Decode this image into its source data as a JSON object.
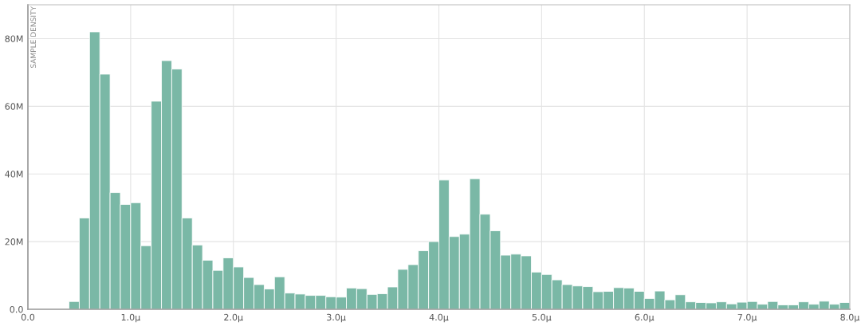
{
  "chart_data": {
    "type": "histogram",
    "ylabel": "SAMPLE DENSITY",
    "color": "#7ab8a6",
    "bins": [
      0.4,
      0.5,
      0.6,
      0.7,
      0.8,
      0.9,
      1.0,
      1.1,
      1.2,
      1.3,
      1.4,
      1.5,
      1.6,
      1.7,
      1.8,
      1.9,
      2.0,
      2.1,
      2.2,
      2.3,
      2.4,
      2.5,
      2.6,
      2.7,
      2.8,
      2.9,
      3.0,
      3.1,
      3.2,
      3.3,
      3.4,
      3.5,
      3.6,
      3.7,
      3.8,
      3.9,
      4.0,
      4.1,
      4.2,
      4.3,
      4.4,
      4.5,
      4.6,
      4.7,
      4.8,
      4.9,
      5.0,
      5.1,
      5.2,
      5.3,
      5.4,
      5.5,
      5.6,
      5.7,
      5.8,
      5.9,
      6.0,
      6.1,
      6.2,
      6.3,
      6.4,
      6.5,
      6.6,
      6.7,
      6.8,
      6.9,
      7.0,
      7.1,
      7.2,
      7.3,
      7.4,
      7.5,
      7.6,
      7.7,
      7.8,
      7.9,
      8.0
    ],
    "values": [
      2300000,
      27000000,
      82000000,
      69500000,
      34500000,
      31000000,
      31500000,
      18800000,
      61500000,
      73500000,
      71000000,
      27000000,
      19000000,
      14500000,
      11500000,
      15200000,
      12500000,
      9400000,
      7300000,
      6000000,
      9600000,
      4800000,
      4500000,
      4100000,
      4100000,
      3700000,
      3600000,
      6300000,
      6100000,
      4400000,
      4600000,
      6600000,
      11800000,
      13200000,
      17300000,
      20000000,
      38200000,
      21500000,
      22200000,
      38600000,
      28100000,
      23200000,
      16000000,
      16300000,
      15800000,
      11000000,
      10300000,
      8700000,
      7300000,
      6900000,
      6700000,
      5200000,
      5300000,
      6400000,
      6300000,
      5300000,
      3200000,
      5400000,
      2800000,
      4300000,
      2200000,
      2000000,
      1900000,
      2200000,
      1600000,
      2100000,
      2300000,
      1500000,
      2300000,
      1300000,
      1300000,
      2200000,
      1500000,
      2400000,
      1500000,
      2000000
    ],
    "xlim": [
      0,
      8.0
    ],
    "xticks": [
      {
        "value": 0,
        "label": "0.0"
      },
      {
        "value": 1,
        "label": "1.0μ"
      },
      {
        "value": 2,
        "label": "2.0μ"
      },
      {
        "value": 3,
        "label": "3.0μ"
      },
      {
        "value": 4,
        "label": "4.0μ"
      },
      {
        "value": 5,
        "label": "5.0μ"
      },
      {
        "value": 6,
        "label": "6.0μ"
      },
      {
        "value": 7,
        "label": "7.0μ"
      },
      {
        "value": 8,
        "label": "8.0μ"
      }
    ],
    "ylim": [
      0,
      90000000
    ],
    "yticks": [
      {
        "value": 0,
        "label": "0.0"
      },
      {
        "value": 20000000,
        "label": "20M"
      },
      {
        "value": 40000000,
        "label": "40M"
      },
      {
        "value": 60000000,
        "label": "60M"
      },
      {
        "value": 80000000,
        "label": "80M"
      }
    ],
    "grid": true
  }
}
